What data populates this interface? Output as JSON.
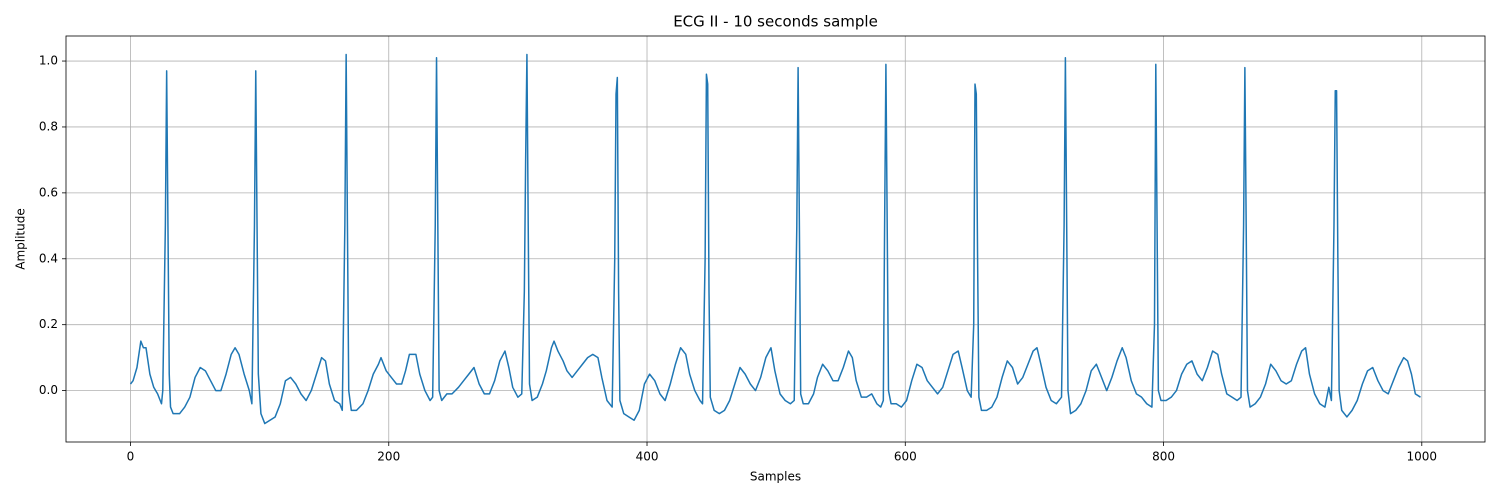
{
  "chart_data": {
    "type": "line",
    "title": "ECG II - 10 seconds sample",
    "x_label": "Samples",
    "y_label": "Amplitude",
    "color": "#1f77b4",
    "grid": true,
    "xlim": [
      -49.95,
      1048.95
    ],
    "ylim": [
      -0.156,
      1.076
    ],
    "xticks": [
      0,
      200,
      400,
      600,
      800,
      1000
    ],
    "yticks": [
      {
        "value": 0,
        "label": "0.0"
      },
      0.2,
      0.4,
      0.6,
      0.8,
      {
        "value": 1,
        "label": "1.0"
      }
    ],
    "x": [
      0,
      2,
      5,
      8,
      10,
      12,
      15,
      18,
      21,
      24,
      25,
      27,
      28,
      29,
      30,
      31,
      33,
      38,
      42,
      46,
      50,
      54,
      58,
      62,
      66,
      70,
      74,
      78,
      81,
      84,
      88,
      92,
      94,
      96,
      97,
      98,
      99,
      101,
      104,
      108,
      112,
      116,
      120,
      124,
      128,
      132,
      136,
      140,
      144,
      148,
      151,
      154,
      158,
      162,
      164,
      166,
      167,
      168,
      169,
      171,
      175,
      180,
      184,
      188,
      192,
      194,
      198,
      202,
      206,
      210,
      213,
      216,
      221,
      224,
      228,
      232,
      234,
      236,
      237,
      238,
      239,
      241,
      245,
      249,
      254,
      258,
      262,
      266,
      270,
      274,
      278,
      282,
      286,
      290,
      293,
      296,
      300,
      303,
      305,
      306,
      307,
      308,
      309,
      311,
      315,
      319,
      322,
      326,
      328,
      331,
      335,
      338,
      342,
      346,
      350,
      354,
      358,
      362,
      365,
      369,
      373,
      375,
      376,
      377,
      378,
      379,
      382,
      386,
      390,
      394,
      398,
      402,
      406,
      410,
      414,
      418,
      422,
      426,
      430,
      433,
      437,
      441,
      443,
      445,
      446,
      447,
      448,
      449,
      452,
      456,
      460,
      464,
      468,
      472,
      476,
      480,
      484,
      488,
      492,
      496,
      499,
      503,
      507,
      511,
      514,
      516,
      517,
      518,
      519,
      521,
      525,
      529,
      532,
      536,
      540,
      544,
      548,
      552,
      556,
      559,
      562,
      566,
      570,
      574,
      578,
      581,
      583,
      584,
      585,
      586,
      587,
      589,
      593,
      597,
      601,
      605,
      609,
      613,
      617,
      621,
      625,
      629,
      633,
      637,
      641,
      644,
      648,
      651,
      653,
      654,
      655,
      656,
      657,
      659,
      663,
      667,
      671,
      675,
      679,
      683,
      687,
      691,
      695,
      699,
      702,
      705,
      709,
      713,
      717,
      721,
      723,
      724,
      725,
      726,
      728,
      732,
      736,
      740,
      744,
      748,
      752,
      756,
      760,
      764,
      768,
      771,
      775,
      779,
      783,
      787,
      791,
      793,
      794,
      795,
      796,
      798,
      802,
      806,
      810,
      814,
      818,
      822,
      826,
      830,
      834,
      838,
      842,
      845,
      849,
      853,
      857,
      860,
      862,
      863,
      864,
      865,
      867,
      871,
      875,
      879,
      883,
      887,
      891,
      895,
      899,
      903,
      907,
      910,
      913,
      917,
      921,
      925,
      928,
      930,
      932,
      933,
      934,
      935,
      936,
      938,
      942,
      946,
      950,
      954,
      958,
      962,
      966,
      970,
      974,
      978,
      982,
      986,
      989,
      992,
      995,
      999
    ],
    "values": [
      0.02,
      0.03,
      0.07,
      0.15,
      0.13,
      0.13,
      0.05,
      0.01,
      -0.01,
      -0.04,
      0.0,
      0.5,
      0.97,
      0.5,
      0.05,
      -0.05,
      -0.07,
      -0.07,
      -0.05,
      -0.02,
      0.04,
      0.07,
      0.06,
      0.03,
      0.0,
      0.0,
      0.05,
      0.11,
      0.13,
      0.11,
      0.05,
      0.0,
      -0.04,
      0.5,
      0.97,
      0.5,
      0.05,
      -0.07,
      -0.1,
      -0.09,
      -0.08,
      -0.04,
      0.03,
      0.04,
      0.02,
      -0.01,
      -0.03,
      0.0,
      0.05,
      0.1,
      0.09,
      0.02,
      -0.03,
      -0.04,
      -0.06,
      0.5,
      1.02,
      0.5,
      0.0,
      -0.06,
      -0.06,
      -0.04,
      0.0,
      0.05,
      0.08,
      0.1,
      0.06,
      0.04,
      0.02,
      0.02,
      0.06,
      0.11,
      0.11,
      0.05,
      0.0,
      -0.03,
      -0.02,
      0.5,
      1.01,
      0.5,
      0.0,
      -0.03,
      -0.01,
      -0.01,
      0.01,
      0.03,
      0.05,
      0.07,
      0.02,
      -0.01,
      -0.01,
      0.03,
      0.09,
      0.12,
      0.07,
      0.01,
      -0.02,
      -0.01,
      0.3,
      0.7,
      1.02,
      0.5,
      0.02,
      -0.03,
      -0.02,
      0.02,
      0.06,
      0.13,
      0.15,
      0.12,
      0.09,
      0.06,
      0.04,
      0.06,
      0.08,
      0.1,
      0.11,
      0.1,
      0.04,
      -0.03,
      -0.05,
      0.4,
      0.9,
      0.95,
      0.3,
      -0.03,
      -0.07,
      -0.08,
      -0.09,
      -0.06,
      0.02,
      0.05,
      0.03,
      -0.01,
      -0.03,
      0.02,
      0.08,
      0.13,
      0.11,
      0.05,
      0.0,
      -0.03,
      -0.04,
      0.4,
      0.96,
      0.93,
      0.3,
      -0.02,
      -0.06,
      -0.07,
      -0.06,
      -0.03,
      0.02,
      0.07,
      0.05,
      0.02,
      0.0,
      0.04,
      0.1,
      0.13,
      0.06,
      -0.01,
      -0.03,
      -0.04,
      -0.03,
      0.5,
      0.98,
      0.5,
      -0.01,
      -0.04,
      -0.04,
      -0.01,
      0.04,
      0.08,
      0.06,
      0.03,
      0.03,
      0.07,
      0.12,
      0.1,
      0.03,
      -0.02,
      -0.02,
      -0.01,
      -0.04,
      -0.05,
      -0.03,
      0.5,
      0.99,
      0.5,
      0.0,
      -0.04,
      -0.04,
      -0.05,
      -0.03,
      0.03,
      0.08,
      0.07,
      0.03,
      0.01,
      -0.01,
      0.01,
      0.06,
      0.11,
      0.12,
      0.07,
      0.0,
      -0.02,
      0.2,
      0.93,
      0.9,
      0.4,
      -0.02,
      -0.06,
      -0.06,
      -0.05,
      -0.02,
      0.04,
      0.09,
      0.07,
      0.02,
      0.04,
      0.08,
      0.12,
      0.13,
      0.08,
      0.01,
      -0.03,
      -0.04,
      -0.02,
      0.5,
      1.01,
      0.5,
      0.0,
      -0.07,
      -0.06,
      -0.04,
      0.0,
      0.06,
      0.08,
      0.04,
      0.0,
      0.04,
      0.09,
      0.13,
      0.1,
      0.03,
      -0.01,
      -0.02,
      -0.04,
      -0.05,
      0.2,
      0.99,
      0.5,
      0.0,
      -0.03,
      -0.03,
      -0.02,
      0.0,
      0.05,
      0.08,
      0.09,
      0.05,
      0.03,
      0.07,
      0.12,
      0.11,
      0.05,
      -0.01,
      -0.02,
      -0.03,
      -0.02,
      0.5,
      0.98,
      0.5,
      0.0,
      -0.05,
      -0.04,
      -0.02,
      0.02,
      0.08,
      0.06,
      0.03,
      0.02,
      0.03,
      0.08,
      0.12,
      0.13,
      0.05,
      -0.01,
      -0.04,
      -0.05,
      0.01,
      -0.03,
      0.5,
      0.91,
      0.91,
      0.4,
      0.0,
      -0.06,
      -0.08,
      -0.06,
      -0.03,
      0.02,
      0.06,
      0.07,
      0.03,
      0.0,
      -0.01,
      0.03,
      0.07,
      0.1,
      0.09,
      0.05,
      -0.01,
      -0.02
    ]
  }
}
